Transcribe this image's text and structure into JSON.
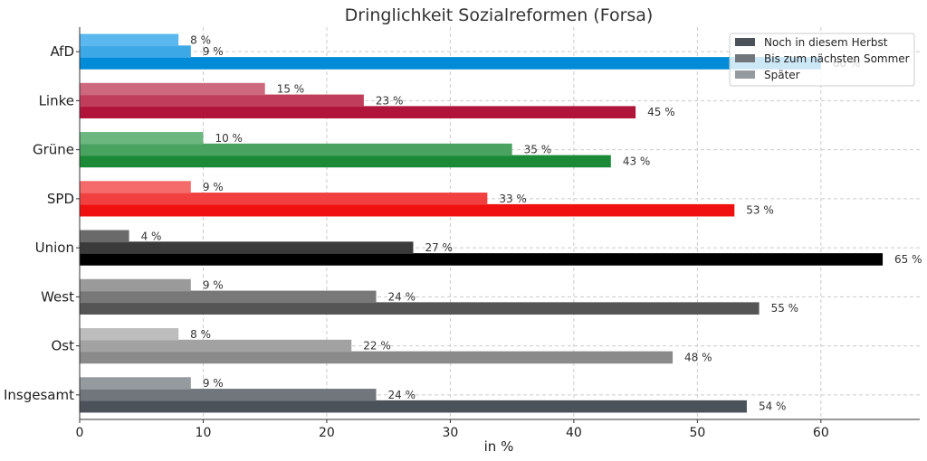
{
  "chart_data": {
    "type": "bar",
    "orientation": "horizontal",
    "title": "Dringlichkeit Sozialreformen (Forsa)",
    "xlabel": "in %",
    "ylabel": "",
    "xlim": [
      0,
      68
    ],
    "xticks": [
      0,
      10,
      20,
      30,
      40,
      50,
      60
    ],
    "value_suffix": " %",
    "grid": true,
    "legend_position": "top-right",
    "categories": [
      "AfD",
      "Linke",
      "Grüne",
      "SPD",
      "Union",
      "West",
      "Ost",
      "Insgesamt"
    ],
    "series": [
      {
        "name": "Noch in diesem Herbst",
        "values": [
          60,
          45,
          43,
          53,
          65,
          55,
          48,
          54
        ]
      },
      {
        "name": "Bis zum nächsten Sommer",
        "values": [
          9,
          23,
          35,
          33,
          27,
          24,
          22,
          24
        ]
      },
      {
        "name": "Später",
        "values": [
          8,
          15,
          10,
          9,
          4,
          9,
          8,
          9
        ]
      }
    ],
    "colors": [
      [
        "#008bd8",
        "#3da8e6",
        "#5ab8ee"
      ],
      [
        "#b0143a",
        "#c03d5c",
        "#cd687f"
      ],
      [
        "#1a8a36",
        "#4aa261",
        "#6cb67f"
      ],
      [
        "#f01010",
        "#f24040",
        "#f56a6a"
      ],
      [
        "#000000",
        "#3a3a3a",
        "#6a6a6a"
      ],
      [
        "#555555",
        "#787878",
        "#9a9a9a"
      ],
      [
        "#8a8a8a",
        "#a2a2a2",
        "#bdbdbd"
      ],
      [
        "#4c525a",
        "#71767d",
        "#959a9f"
      ]
    ],
    "legend_colors": [
      "#4c525a",
      "#71767d",
      "#959a9f"
    ]
  }
}
